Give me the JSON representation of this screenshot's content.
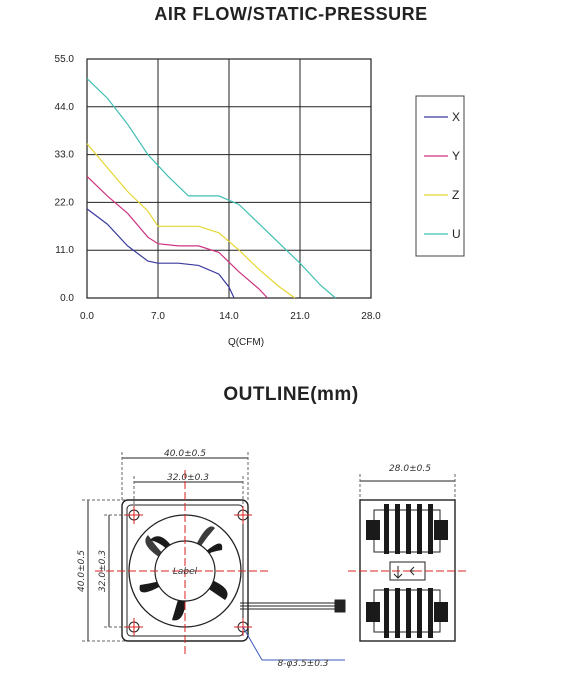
{
  "page": {
    "chart_title": "AIR FLOW/STATIC-PRESSURE",
    "outline_title": "OUTLINE(mm)"
  },
  "chart_data": {
    "type": "line",
    "title": "AIR FLOW/STATIC-PRESSURE",
    "xlabel": "Q(CFM)",
    "ylabel": "",
    "xlim": [
      0,
      28
    ],
    "ylim": [
      0,
      55
    ],
    "x_ticks": [
      "0.0",
      "7.0",
      "14.0",
      "21.0",
      "28.0"
    ],
    "y_ticks": [
      "0.0",
      "11.0",
      "22.0",
      "33.0",
      "44.0",
      "55.0"
    ],
    "grid": true,
    "legend_placement": "right",
    "series": [
      {
        "name": "X",
        "color": "#3b3b9e",
        "x": [
          0,
          2,
          4,
          6,
          7,
          9,
          11,
          13,
          14,
          14.5
        ],
        "y": [
          20.5,
          17,
          12,
          8.5,
          8,
          8,
          7.5,
          5.5,
          2.5,
          0
        ]
      },
      {
        "name": "Y",
        "color": "#cc3380",
        "x": [
          0,
          2,
          4,
          6,
          7,
          9,
          11,
          13,
          15,
          17,
          17.8
        ],
        "y": [
          28,
          23.5,
          19.5,
          14,
          12.5,
          12,
          12,
          10.5,
          6,
          2,
          0
        ]
      },
      {
        "name": "Z",
        "color": "#e6d633",
        "x": [
          0,
          2,
          4,
          6,
          7,
          9,
          11,
          13,
          15,
          17,
          19,
          20.5
        ],
        "y": [
          35.5,
          30,
          24.5,
          20,
          16.5,
          16.5,
          16.5,
          15,
          11,
          6.5,
          2.5,
          0
        ]
      },
      {
        "name": "U",
        "color": "#40bfb3",
        "x": [
          0,
          2,
          4,
          6,
          8,
          10,
          11,
          13,
          15,
          17,
          19,
          21,
          23,
          24.5
        ],
        "y": [
          50.5,
          46,
          40,
          33,
          28,
          23.5,
          23.5,
          23.5,
          21.5,
          17,
          12.5,
          8,
          3,
          0
        ]
      }
    ]
  },
  "outline": {
    "width_overall": "40.0±0.5",
    "hole_spacing_h": "32.0±0.3",
    "height_overall": "40.0±0.5",
    "hole_spacing_v": "32.0±0.3",
    "depth": "28.0±0.5",
    "hole_spec": "8-φ3.5±0.3",
    "label_text": "Label"
  }
}
